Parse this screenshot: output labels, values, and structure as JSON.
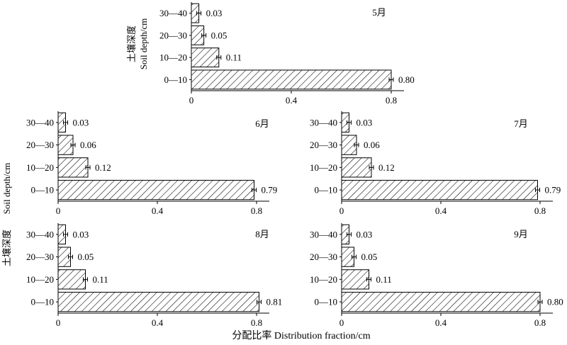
{
  "figure": {
    "y_label_cn": "土壤深度",
    "y_label_en": "Soil depth/cm",
    "x_label": "分配比率 Distribution fraction/cm"
  },
  "chart_data": [
    {
      "type": "bar",
      "orientation": "horizontal",
      "title": "5月",
      "categories": [
        "0—10",
        "10—20",
        "20—30",
        "30—40"
      ],
      "values": [
        0.8,
        0.11,
        0.05,
        0.03
      ],
      "value_labels": [
        "0.80",
        "0.11",
        "0.05",
        "0.03"
      ],
      "xlim": [
        0,
        0.8
      ],
      "xticks": [
        "0",
        "0.4",
        "0.8"
      ],
      "pattern": "diagonal-hatch",
      "error_bars": true,
      "grid": false
    },
    {
      "type": "bar",
      "orientation": "horizontal",
      "title": "6月",
      "categories": [
        "0—10",
        "10—20",
        "20—30",
        "30—40"
      ],
      "values": [
        0.79,
        0.12,
        0.06,
        0.03
      ],
      "value_labels": [
        "0.79",
        "0.12",
        "0.06",
        "0.03"
      ],
      "xlim": [
        0,
        0.8
      ],
      "xticks": [
        "0",
        "0.4",
        "0.8"
      ],
      "pattern": "diagonal-hatch",
      "error_bars": true,
      "grid": false
    },
    {
      "type": "bar",
      "orientation": "horizontal",
      "title": "7月",
      "categories": [
        "0—10",
        "10—20",
        "20—30",
        "30—40"
      ],
      "values": [
        0.79,
        0.12,
        0.06,
        0.03
      ],
      "value_labels": [
        "0.79",
        "0.12",
        "0.06",
        "0.03"
      ],
      "xlim": [
        0,
        0.8
      ],
      "xticks": [
        "0",
        "0.4",
        "0.8"
      ],
      "pattern": "diagonal-hatch",
      "error_bars": true,
      "grid": false
    },
    {
      "type": "bar",
      "orientation": "horizontal",
      "title": "8月",
      "categories": [
        "0—10",
        "10—20",
        "20—30",
        "30—40"
      ],
      "values": [
        0.81,
        0.11,
        0.05,
        0.03
      ],
      "value_labels": [
        "0.81",
        "0.11",
        "0.05",
        "0.03"
      ],
      "xlim": [
        0,
        0.8
      ],
      "xticks": [
        "0",
        "0.4",
        "0.8"
      ],
      "pattern": "diagonal-hatch",
      "error_bars": true,
      "grid": false
    },
    {
      "type": "bar",
      "orientation": "horizontal",
      "title": "9月",
      "categories": [
        "0—10",
        "10—20",
        "20—30",
        "30—40"
      ],
      "values": [
        0.8,
        0.11,
        0.05,
        0.03
      ],
      "value_labels": [
        "0.80",
        "0.11",
        "0.05",
        "0.03"
      ],
      "xlim": [
        0,
        0.8
      ],
      "xticks": [
        "0",
        "0.4",
        "0.8"
      ],
      "pattern": "diagonal-hatch",
      "error_bars": true,
      "grid": false
    }
  ]
}
